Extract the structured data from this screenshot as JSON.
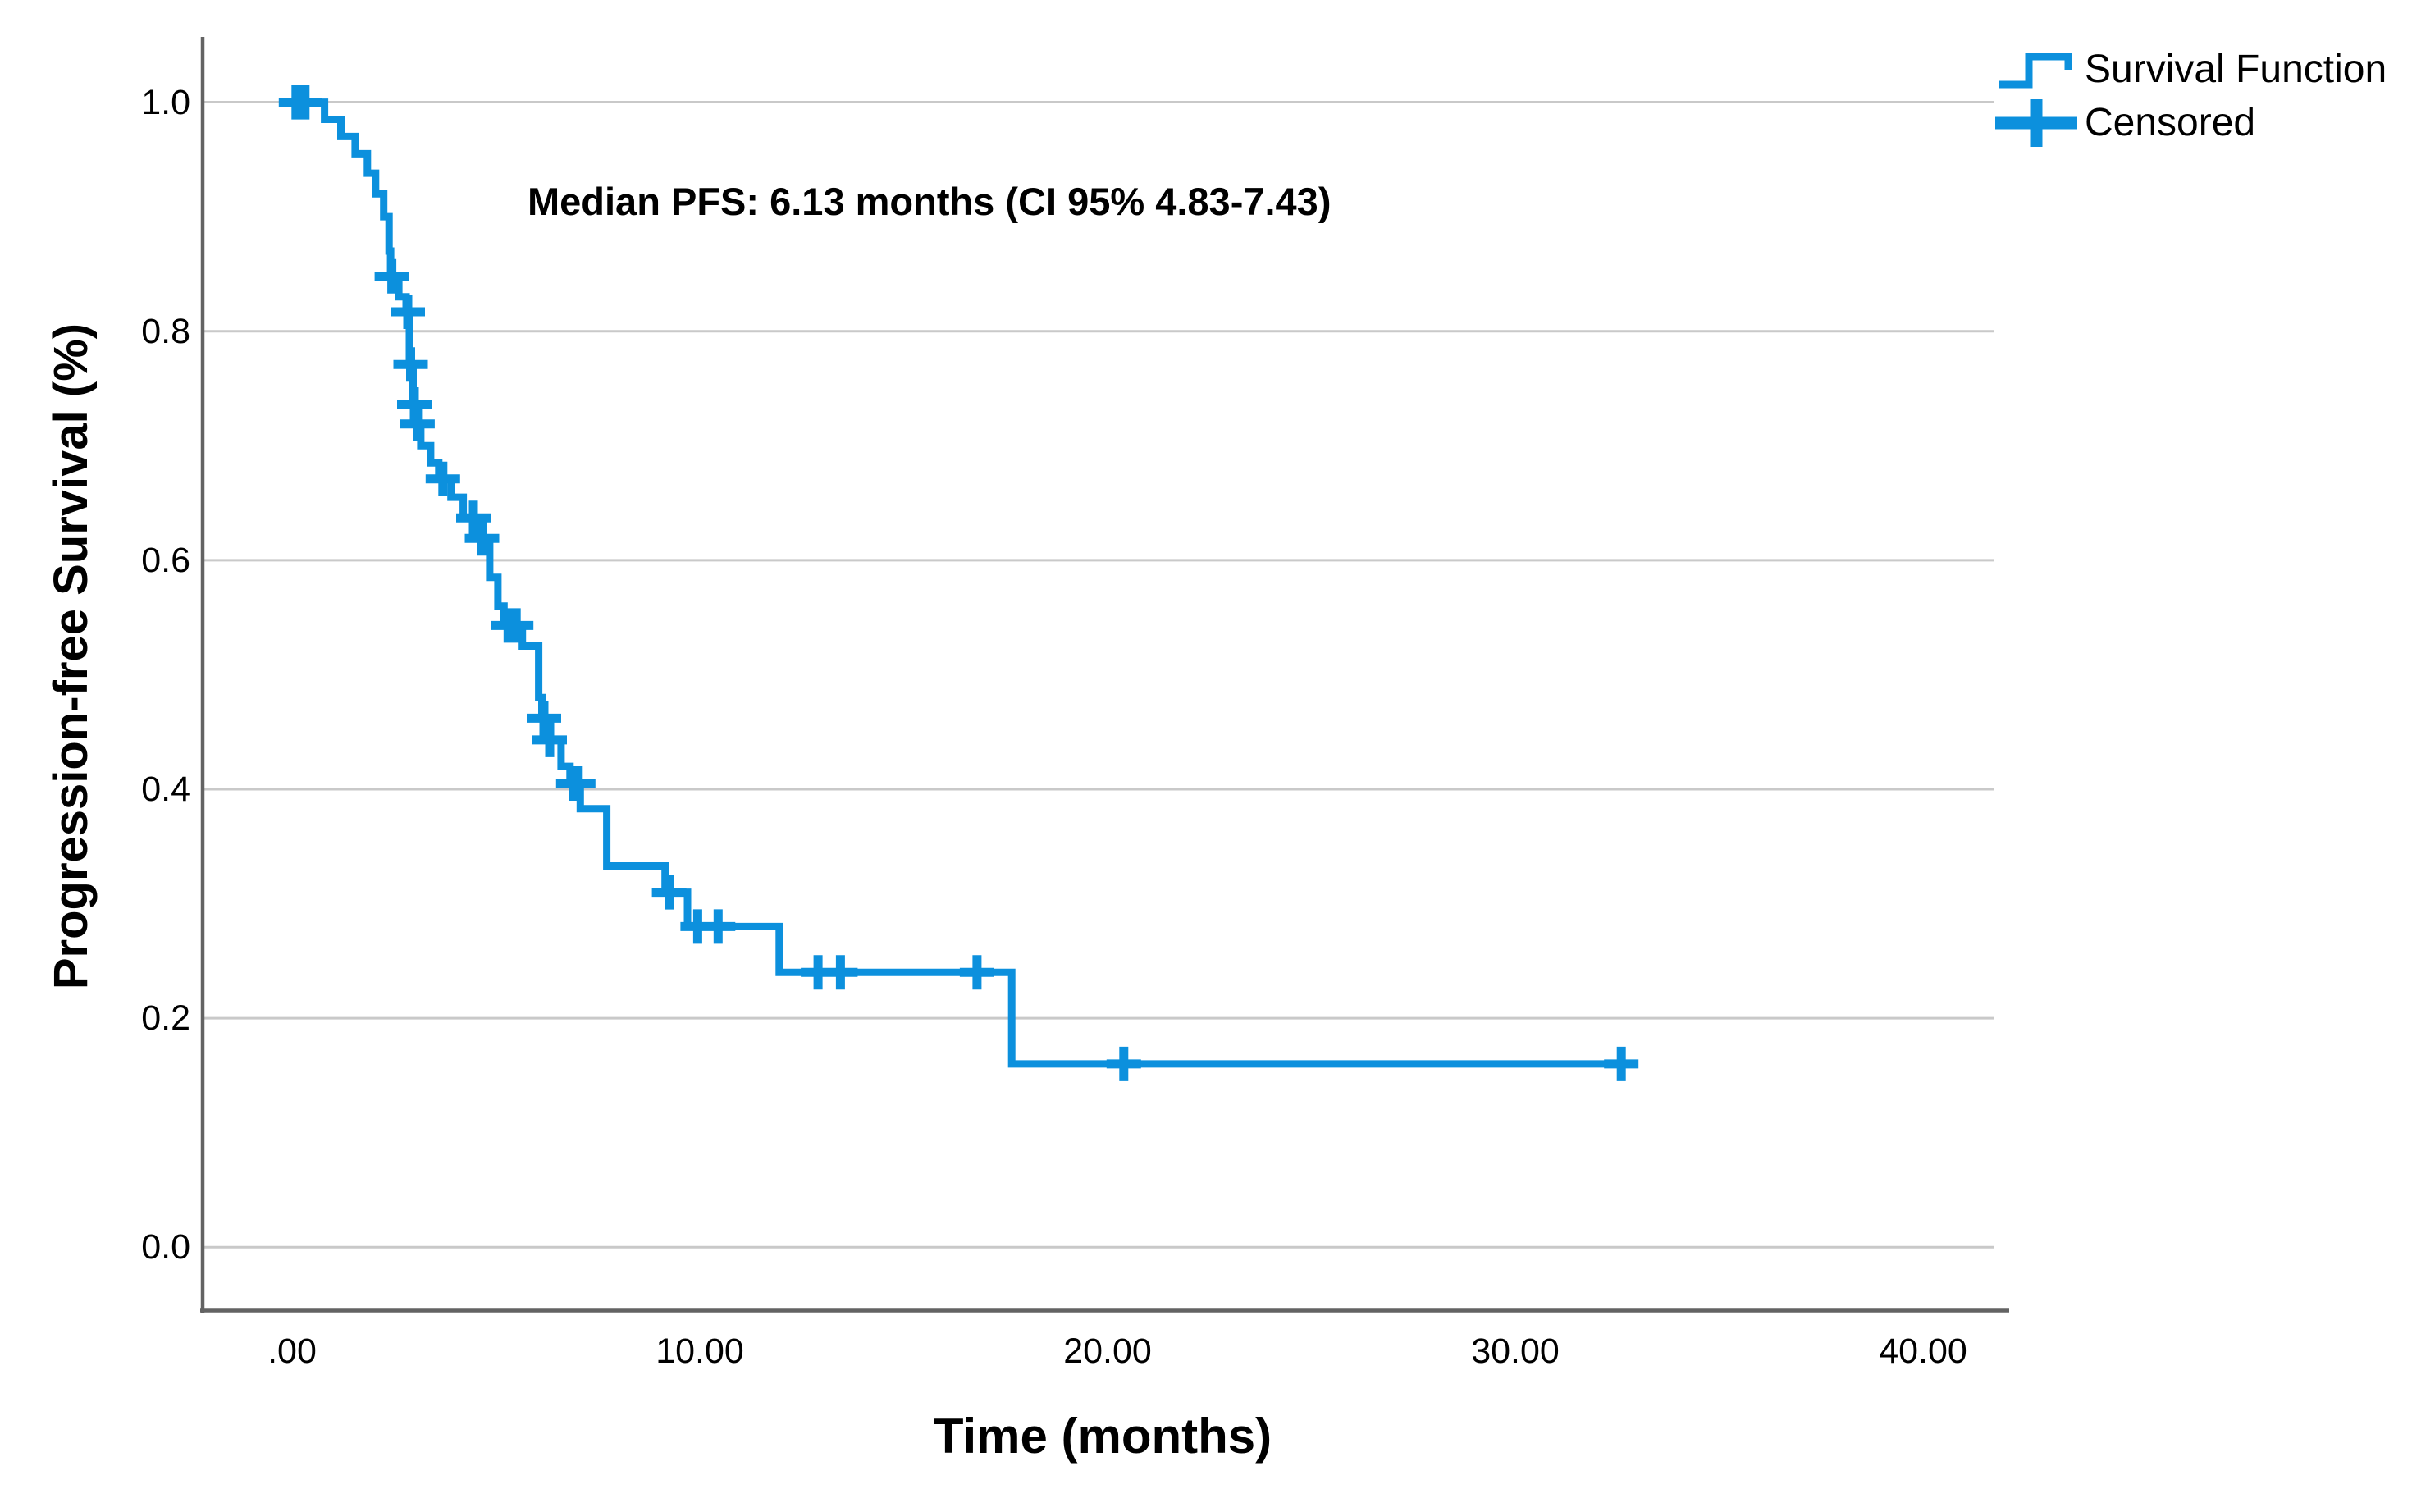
{
  "chart_data": {
    "type": "line",
    "subtype": "kaplan-meier-step-function",
    "title": "",
    "annotation": "Median PFS: 6.13 months (CI 95% 4.83-7.43)",
    "xlabel": "Time (months)",
    "ylabel": "Progression-free Survival (%)",
    "xlim": [
      -2.19,
      41.93
    ],
    "ylim": [
      -0.055,
      1.057
    ],
    "grid": "horizontal",
    "legend_position": "top-right-outside",
    "x_ticks": [
      {
        "value": 0,
        "label": ".00"
      },
      {
        "value": 10,
        "label": "10.00"
      },
      {
        "value": 20,
        "label": "20.00"
      },
      {
        "value": 30,
        "label": "30.00"
      },
      {
        "value": 40,
        "label": "40.00"
      }
    ],
    "y_ticks": [
      {
        "value": 1.0,
        "label": "1.0"
      },
      {
        "value": 0.8,
        "label": "0.8"
      },
      {
        "value": 0.6,
        "label": "0.6"
      },
      {
        "value": 0.4,
        "label": "0.4"
      },
      {
        "value": 0.2,
        "label": "0.2"
      },
      {
        "value": 0.0,
        "label": "0.0"
      }
    ],
    "legend": [
      {
        "label": "Survival Function",
        "glyph": "step-line"
      },
      {
        "label": "Censored",
        "glyph": "plus"
      }
    ],
    "series": [
      {
        "name": "Survival Function",
        "type": "step",
        "end_time": 33.0,
        "steps": [
          [
            0.0,
            1.0
          ],
          [
            0.8,
            0.985
          ],
          [
            1.2,
            0.97
          ],
          [
            1.55,
            0.955
          ],
          [
            1.85,
            0.938
          ],
          [
            2.05,
            0.92
          ],
          [
            2.25,
            0.9
          ],
          [
            2.38,
            0.87
          ],
          [
            2.42,
            0.848
          ],
          [
            2.62,
            0.83
          ],
          [
            2.8,
            0.817
          ],
          [
            2.88,
            0.771
          ],
          [
            2.97,
            0.736
          ],
          [
            3.04,
            0.719
          ],
          [
            3.16,
            0.7
          ],
          [
            3.4,
            0.685
          ],
          [
            3.6,
            0.671
          ],
          [
            3.9,
            0.655
          ],
          [
            4.2,
            0.637
          ],
          [
            4.55,
            0.619
          ],
          [
            4.85,
            0.585
          ],
          [
            5.05,
            0.56
          ],
          [
            5.2,
            0.543
          ],
          [
            5.65,
            0.525
          ],
          [
            6.05,
            0.48
          ],
          [
            6.13,
            0.462
          ],
          [
            6.28,
            0.443
          ],
          [
            6.6,
            0.42
          ],
          [
            6.82,
            0.405
          ],
          [
            7.07,
            0.383
          ],
          [
            7.72,
            0.333
          ],
          [
            9.15,
            0.31
          ],
          [
            9.7,
            0.28
          ],
          [
            11.95,
            0.24
          ],
          [
            17.65,
            0.16
          ]
        ]
      }
    ],
    "censored": [
      [
        0.1,
        1.0
      ],
      [
        0.32,
        1.0
      ],
      [
        2.45,
        0.848
      ],
      [
        2.84,
        0.817
      ],
      [
        2.91,
        0.771
      ],
      [
        3.0,
        0.736
      ],
      [
        3.08,
        0.719
      ],
      [
        3.7,
        0.671
      ],
      [
        4.45,
        0.637
      ],
      [
        4.66,
        0.619
      ],
      [
        5.3,
        0.543
      ],
      [
        5.5,
        0.543
      ],
      [
        6.18,
        0.462
      ],
      [
        6.32,
        0.443
      ],
      [
        6.9,
        0.405
      ],
      [
        7.02,
        0.405
      ],
      [
        9.25,
        0.31
      ],
      [
        9.95,
        0.28
      ],
      [
        10.45,
        0.28
      ],
      [
        12.9,
        0.24
      ],
      [
        13.45,
        0.24
      ],
      [
        16.8,
        0.24
      ],
      [
        20.4,
        0.16
      ],
      [
        32.6,
        0.16
      ]
    ],
    "colors": {
      "line": "#0c90dd",
      "grid": "#c9c9c9",
      "axis": "#636363",
      "text": "#000000"
    }
  }
}
